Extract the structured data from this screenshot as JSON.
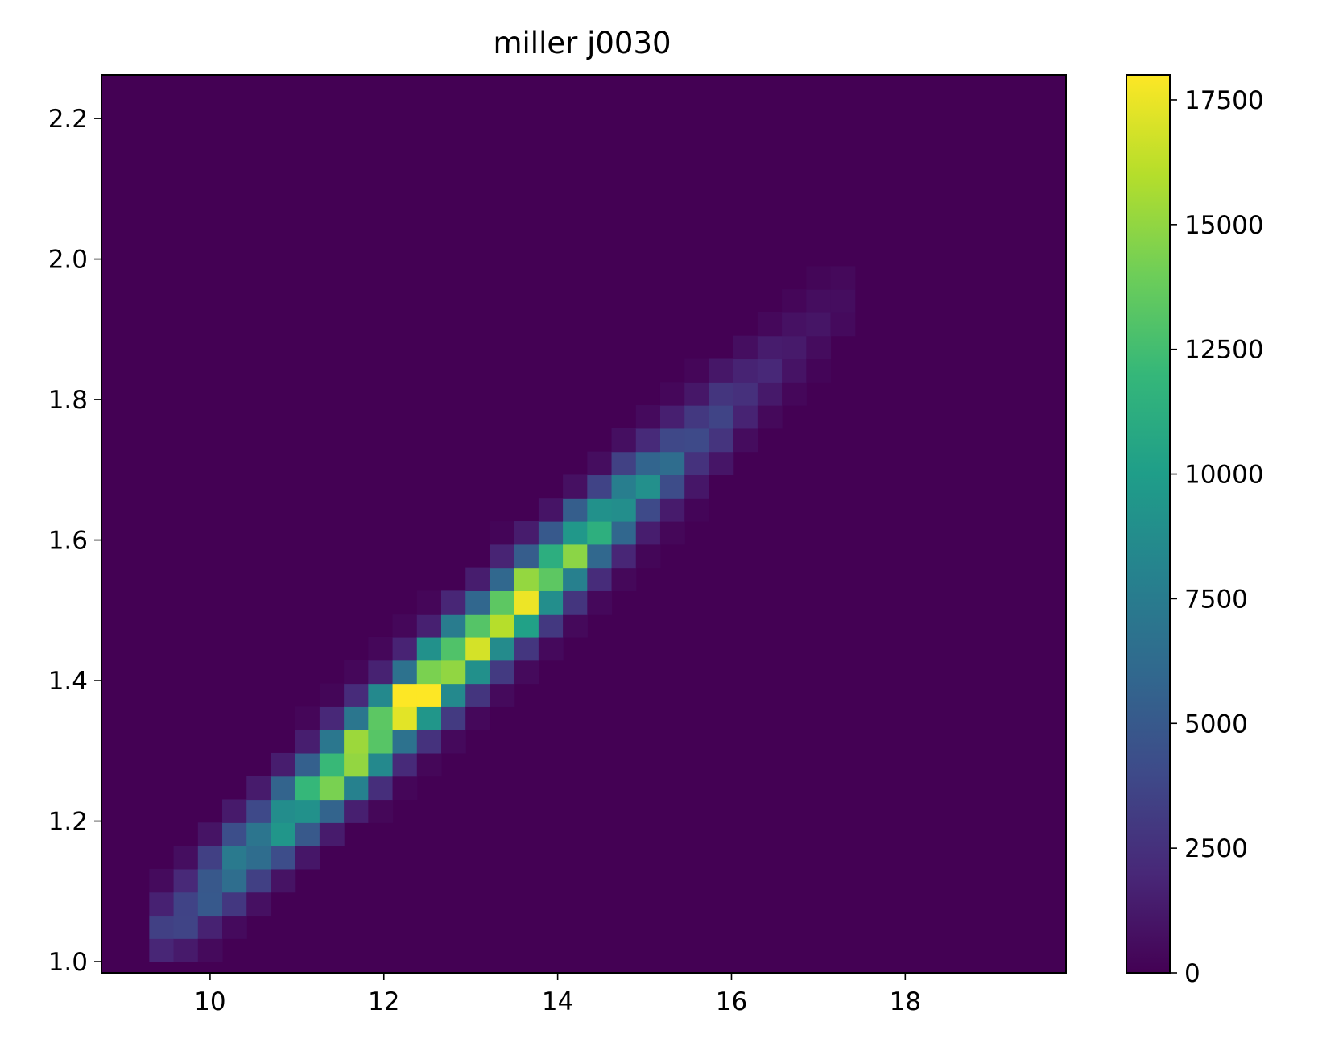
{
  "chart_data": {
    "type": "heatmap",
    "title": "miller j0030",
    "xlabel": "",
    "ylabel": "",
    "xlim": [
      8.75,
      19.85
    ],
    "ylim": [
      0.984,
      2.262
    ],
    "x_ticks": [
      10,
      12,
      14,
      16,
      18
    ],
    "x_tick_labels": [
      "10",
      "12",
      "14",
      "16",
      "18"
    ],
    "y_ticks": [
      1.0,
      1.2,
      1.4,
      1.6,
      1.8,
      2.0,
      2.2
    ],
    "y_tick_labels": [
      "1.0",
      "1.2",
      "1.4",
      "1.6",
      "1.8",
      "2.0",
      "2.2"
    ],
    "colormap": "viridis",
    "colorbar": {
      "min": 0,
      "max": 18000,
      "ticks": [
        0,
        2500,
        5000,
        7500,
        10000,
        12500,
        15000,
        17500
      ],
      "tick_labels": [
        "0",
        "2500",
        "5000",
        "7500",
        "10000",
        "12500",
        "15000",
        "17500"
      ]
    },
    "bin_size_x": 0.28,
    "bin_size_y": 0.033,
    "distribution": {
      "peak_x": 12.75,
      "peak_y": 1.42,
      "peak_count": 18000,
      "slope": 0.114,
      "axis_sd": 1.75,
      "width_sd": 0.04,
      "x_range": [
        9.3,
        17.4
      ],
      "y_range": [
        1.0,
        2.0
      ]
    },
    "colors": {
      "background_bin": "#440154",
      "peak_bin": "#fde725"
    }
  }
}
